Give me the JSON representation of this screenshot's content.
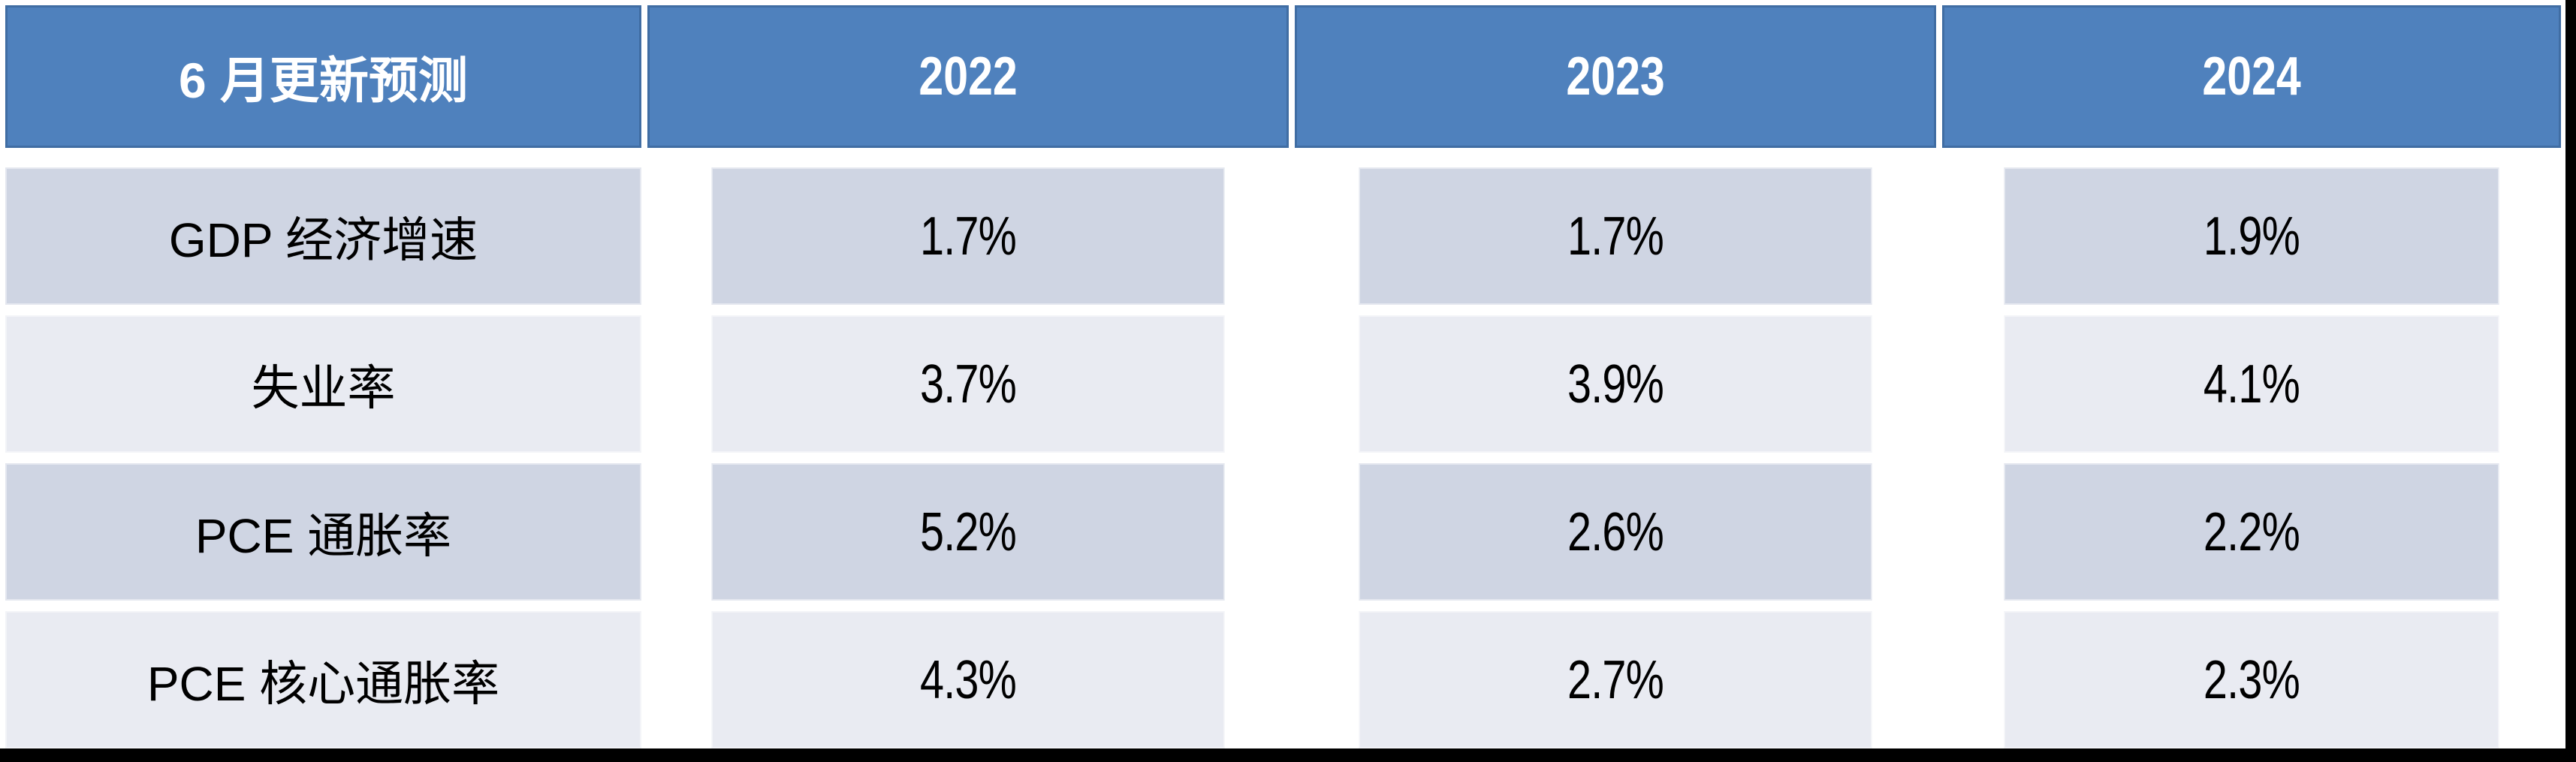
{
  "table": {
    "header": {
      "label": "6 月更新预测",
      "years": [
        "2022",
        "2023",
        "2024"
      ]
    },
    "rows": [
      {
        "label": "GDP 经济增速",
        "values": [
          "1.7%",
          "1.7%",
          "1.9%"
        ]
      },
      {
        "label": "失业率",
        "values": [
          "3.7%",
          "3.9%",
          "4.1%"
        ]
      },
      {
        "label": "PCE 通胀率",
        "values": [
          "5.2%",
          "2.6%",
          "2.2%"
        ]
      },
      {
        "label": "PCE 核心通胀率",
        "values": [
          "4.3%",
          "2.7%",
          "2.3%"
        ]
      }
    ]
  },
  "chart_data": {
    "type": "table",
    "title": "6 月更新预测",
    "columns": [
      "6 月更新预测",
      "2022",
      "2023",
      "2024"
    ],
    "rows": [
      [
        "GDP 经济增速",
        "1.7%",
        "1.7%",
        "1.9%"
      ],
      [
        "失业率",
        "3.7%",
        "3.9%",
        "4.1%"
      ],
      [
        "PCE 通胀率",
        "5.2%",
        "2.6%",
        "2.2%"
      ],
      [
        "PCE 核心通胀率",
        "4.3%",
        "2.7%",
        "2.3%"
      ]
    ]
  },
  "colors": {
    "header_bg": "#4F81BD",
    "row_odd_bg": "#CFD5E3",
    "row_even_bg": "#E9EBF2",
    "text_header": "#FFFFFF",
    "text_body": "#000000",
    "frame": "#000000"
  }
}
